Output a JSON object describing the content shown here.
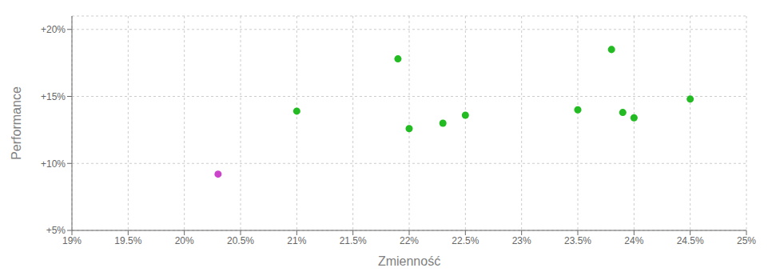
{
  "chart_data": {
    "type": "scatter",
    "xlabel": "Zmienność",
    "ylabel": "Performance",
    "xlim": [
      0.19,
      0.25
    ],
    "ylim": [
      0.05,
      0.21
    ],
    "xticks": [
      {
        "value": 0.19,
        "label": "19%"
      },
      {
        "value": 0.195,
        "label": "19.5%"
      },
      {
        "value": 0.2,
        "label": "20%"
      },
      {
        "value": 0.205,
        "label": "20.5%"
      },
      {
        "value": 0.21,
        "label": "21%"
      },
      {
        "value": 0.215,
        "label": "21.5%"
      },
      {
        "value": 0.22,
        "label": "22%"
      },
      {
        "value": 0.225,
        "label": "22.5%"
      },
      {
        "value": 0.23,
        "label": "23%"
      },
      {
        "value": 0.235,
        "label": "23.5%"
      },
      {
        "value": 0.24,
        "label": "24%"
      },
      {
        "value": 0.245,
        "label": "24.5%"
      },
      {
        "value": 0.25,
        "label": "25%"
      }
    ],
    "yticks": [
      {
        "value": 0.05,
        "label": "+5%"
      },
      {
        "value": 0.1,
        "label": "+10%"
      },
      {
        "value": 0.15,
        "label": "+15%"
      },
      {
        "value": 0.2,
        "label": "+20%"
      }
    ],
    "grid": true,
    "series": [
      {
        "color": "#22bb22",
        "x": [
          0.21,
          0.219,
          0.22,
          0.223,
          0.225,
          0.235,
          0.238,
          0.239,
          0.24,
          0.245
        ],
        "values": [
          0.139,
          0.178,
          0.126,
          0.13,
          0.136,
          0.14,
          0.185,
          0.138,
          0.134,
          0.148
        ]
      },
      {
        "color": "#cc44cc",
        "x": [
          0.203
        ],
        "values": [
          0.092
        ]
      }
    ]
  }
}
